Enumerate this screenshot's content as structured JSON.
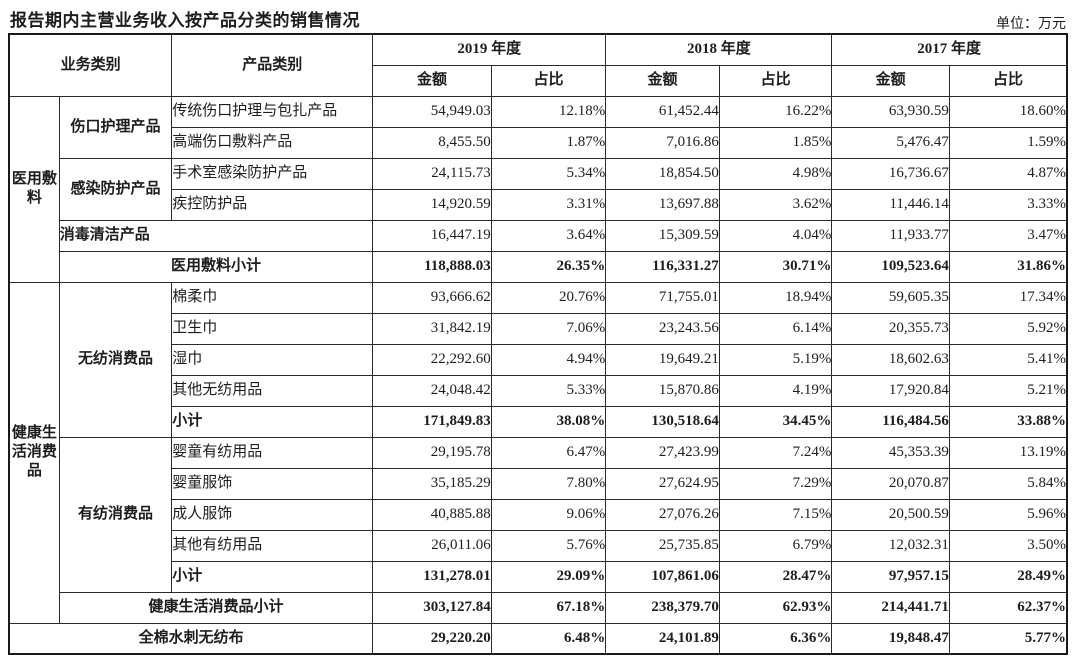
{
  "title": "报告期内主营业务收入按产品分类的销售情况",
  "unit_label": "单位：万元",
  "table": {
    "rows": [
      {
        "cells": [
          {
            "text": "业务类别",
            "colspan": 2,
            "rowspan": 2,
            "cls": "head"
          },
          {
            "text": "产品类别",
            "rowspan": 2,
            "cls": "head"
          },
          {
            "text": "2019 年度",
            "colspan": 2,
            "cls": "head"
          },
          {
            "text": "2018 年度",
            "colspan": 2,
            "cls": "head"
          },
          {
            "text": "2017 年度",
            "colspan": 2,
            "cls": "head"
          }
        ]
      },
      {
        "cells": [
          {
            "text": "金额",
            "cls": "head"
          },
          {
            "text": "占比",
            "cls": "head"
          },
          {
            "text": "金额",
            "cls": "head"
          },
          {
            "text": "占比",
            "cls": "head"
          },
          {
            "text": "金额",
            "cls": "head"
          },
          {
            "text": "占比",
            "cls": "head"
          }
        ]
      },
      {
        "cells": [
          {
            "text": "医用敷料",
            "rowspan": 6,
            "cls": "cat"
          },
          {
            "text": "伤口护理产品",
            "rowspan": 2,
            "cls": "subcat"
          },
          {
            "text": "传统伤口护理与包扎产品",
            "cls": "product"
          },
          {
            "text": "54,949.03",
            "cls": "num"
          },
          {
            "text": "12.18%",
            "cls": "num"
          },
          {
            "text": "61,452.44",
            "cls": "num"
          },
          {
            "text": "16.22%",
            "cls": "num"
          },
          {
            "text": "63,930.59",
            "cls": "num"
          },
          {
            "text": "18.60%",
            "cls": "num"
          }
        ]
      },
      {
        "cells": [
          {
            "text": "高端伤口敷料产品",
            "cls": "product"
          },
          {
            "text": "8,455.50",
            "cls": "num"
          },
          {
            "text": "1.87%",
            "cls": "num"
          },
          {
            "text": "7,016.86",
            "cls": "num"
          },
          {
            "text": "1.85%",
            "cls": "num"
          },
          {
            "text": "5,476.47",
            "cls": "num"
          },
          {
            "text": "1.59%",
            "cls": "num"
          }
        ]
      },
      {
        "cells": [
          {
            "text": "感染防护产品",
            "rowspan": 2,
            "cls": "subcat"
          },
          {
            "text": "手术室感染防护产品",
            "cls": "product"
          },
          {
            "text": "24,115.73",
            "cls": "num"
          },
          {
            "text": "5.34%",
            "cls": "num"
          },
          {
            "text": "18,854.50",
            "cls": "num"
          },
          {
            "text": "4.98%",
            "cls": "num"
          },
          {
            "text": "16,736.67",
            "cls": "num"
          },
          {
            "text": "4.87%",
            "cls": "num"
          }
        ]
      },
      {
        "cells": [
          {
            "text": "疾控防护品",
            "cls": "product"
          },
          {
            "text": "14,920.59",
            "cls": "num"
          },
          {
            "text": "3.31%",
            "cls": "num"
          },
          {
            "text": "13,697.88",
            "cls": "num"
          },
          {
            "text": "3.62%",
            "cls": "num"
          },
          {
            "text": "11,446.14",
            "cls": "num"
          },
          {
            "text": "3.33%",
            "cls": "num"
          }
        ]
      },
      {
        "cells": [
          {
            "text": "消毒清洁产品",
            "colspan": 2,
            "cls": "subcat-left"
          },
          {
            "text": "16,447.19",
            "cls": "num"
          },
          {
            "text": "3.64%",
            "cls": "num"
          },
          {
            "text": "15,309.59",
            "cls": "num"
          },
          {
            "text": "4.04%",
            "cls": "num"
          },
          {
            "text": "11,933.77",
            "cls": "num"
          },
          {
            "text": "3.47%",
            "cls": "num"
          }
        ]
      },
      {
        "cells": [
          {
            "text": "医用敷料小计",
            "colspan": 2,
            "cls": "subtotal-center"
          },
          {
            "text": "118,888.03",
            "cls": "num-bold"
          },
          {
            "text": "26.35%",
            "cls": "num-bold"
          },
          {
            "text": "116,331.27",
            "cls": "num-bold"
          },
          {
            "text": "30.71%",
            "cls": "num-bold"
          },
          {
            "text": "109,523.64",
            "cls": "num-bold"
          },
          {
            "text": "31.86%",
            "cls": "num-bold"
          }
        ]
      },
      {
        "cells": [
          {
            "text": "健康生活消费品",
            "rowspan": 11,
            "cls": "cat"
          },
          {
            "text": "无纺消费品",
            "rowspan": 5,
            "cls": "subcat"
          },
          {
            "text": "棉柔巾",
            "cls": "product"
          },
          {
            "text": "93,666.62",
            "cls": "num"
          },
          {
            "text": "20.76%",
            "cls": "num"
          },
          {
            "text": "71,755.01",
            "cls": "num"
          },
          {
            "text": "18.94%",
            "cls": "num"
          },
          {
            "text": "59,605.35",
            "cls": "num"
          },
          {
            "text": "17.34%",
            "cls": "num"
          }
        ]
      },
      {
        "cells": [
          {
            "text": "卫生巾",
            "cls": "product"
          },
          {
            "text": "31,842.19",
            "cls": "num"
          },
          {
            "text": "7.06%",
            "cls": "num"
          },
          {
            "text": "23,243.56",
            "cls": "num"
          },
          {
            "text": "6.14%",
            "cls": "num"
          },
          {
            "text": "20,355.73",
            "cls": "num"
          },
          {
            "text": "5.92%",
            "cls": "num"
          }
        ]
      },
      {
        "cells": [
          {
            "text": "湿巾",
            "cls": "product"
          },
          {
            "text": "22,292.60",
            "cls": "num"
          },
          {
            "text": "4.94%",
            "cls": "num"
          },
          {
            "text": "19,649.21",
            "cls": "num"
          },
          {
            "text": "5.19%",
            "cls": "num"
          },
          {
            "text": "18,602.63",
            "cls": "num"
          },
          {
            "text": "5.41%",
            "cls": "num"
          }
        ]
      },
      {
        "cells": [
          {
            "text": "其他无纺用品",
            "cls": "product"
          },
          {
            "text": "24,048.42",
            "cls": "num"
          },
          {
            "text": "5.33%",
            "cls": "num"
          },
          {
            "text": "15,870.86",
            "cls": "num"
          },
          {
            "text": "4.19%",
            "cls": "num"
          },
          {
            "text": "17,920.84",
            "cls": "num"
          },
          {
            "text": "5.21%",
            "cls": "num"
          }
        ]
      },
      {
        "cells": [
          {
            "text": "小计",
            "cls": "subtotal-left"
          },
          {
            "text": "171,849.83",
            "cls": "num-bold"
          },
          {
            "text": "38.08%",
            "cls": "num-bold"
          },
          {
            "text": "130,518.64",
            "cls": "num-bold"
          },
          {
            "text": "34.45%",
            "cls": "num-bold"
          },
          {
            "text": "116,484.56",
            "cls": "num-bold"
          },
          {
            "text": "33.88%",
            "cls": "num-bold"
          }
        ]
      },
      {
        "cells": [
          {
            "text": "有纺消费品",
            "rowspan": 5,
            "cls": "subcat"
          },
          {
            "text": "婴童有纺用品",
            "cls": "product"
          },
          {
            "text": "29,195.78",
            "cls": "num"
          },
          {
            "text": "6.47%",
            "cls": "num"
          },
          {
            "text": "27,423.99",
            "cls": "num"
          },
          {
            "text": "7.24%",
            "cls": "num"
          },
          {
            "text": "45,353.39",
            "cls": "num"
          },
          {
            "text": "13.19%",
            "cls": "num"
          }
        ]
      },
      {
        "cells": [
          {
            "text": "婴童服饰",
            "cls": "product"
          },
          {
            "text": "35,185.29",
            "cls": "num"
          },
          {
            "text": "7.80%",
            "cls": "num"
          },
          {
            "text": "27,624.95",
            "cls": "num"
          },
          {
            "text": "7.29%",
            "cls": "num"
          },
          {
            "text": "20,070.87",
            "cls": "num"
          },
          {
            "text": "5.84%",
            "cls": "num"
          }
        ]
      },
      {
        "cells": [
          {
            "text": "成人服饰",
            "cls": "product"
          },
          {
            "text": "40,885.88",
            "cls": "num"
          },
          {
            "text": "9.06%",
            "cls": "num"
          },
          {
            "text": "27,076.26",
            "cls": "num"
          },
          {
            "text": "7.15%",
            "cls": "num"
          },
          {
            "text": "20,500.59",
            "cls": "num"
          },
          {
            "text": "5.96%",
            "cls": "num"
          }
        ]
      },
      {
        "cells": [
          {
            "text": "其他有纺用品",
            "cls": "product"
          },
          {
            "text": "26,011.06",
            "cls": "num"
          },
          {
            "text": "5.76%",
            "cls": "num"
          },
          {
            "text": "25,735.85",
            "cls": "num"
          },
          {
            "text": "6.79%",
            "cls": "num"
          },
          {
            "text": "12,032.31",
            "cls": "num"
          },
          {
            "text": "3.50%",
            "cls": "num"
          }
        ]
      },
      {
        "cells": [
          {
            "text": "小计",
            "cls": "subtotal-left"
          },
          {
            "text": "131,278.01",
            "cls": "num-bold"
          },
          {
            "text": "29.09%",
            "cls": "num-bold"
          },
          {
            "text": "107,861.06",
            "cls": "num-bold"
          },
          {
            "text": "28.47%",
            "cls": "num-bold"
          },
          {
            "text": "97,957.15",
            "cls": "num-bold"
          },
          {
            "text": "28.49%",
            "cls": "num-bold"
          }
        ]
      },
      {
        "cells": [
          {
            "text": "健康生活消费品小计",
            "colspan": 2,
            "cls": "subtotal-center"
          },
          {
            "text": "303,127.84",
            "cls": "num-bold"
          },
          {
            "text": "67.18%",
            "cls": "num-bold"
          },
          {
            "text": "238,379.70",
            "cls": "num-bold"
          },
          {
            "text": "62.93%",
            "cls": "num-bold"
          },
          {
            "text": "214,441.71",
            "cls": "num-bold"
          },
          {
            "text": "62.37%",
            "cls": "num-bold"
          }
        ]
      },
      {
        "cells": [
          {
            "text": "全棉水刺无纺布",
            "colspan": 3,
            "cls": "subtotal-center"
          },
          {
            "text": "29,220.20",
            "cls": "num-bold"
          },
          {
            "text": "6.48%",
            "cls": "num-bold"
          },
          {
            "text": "24,101.89",
            "cls": "num-bold"
          },
          {
            "text": "6.36%",
            "cls": "num-bold"
          },
          {
            "text": "19,848.47",
            "cls": "num-bold"
          },
          {
            "text": "5.77%",
            "cls": "num-bold"
          }
        ]
      }
    ]
  }
}
